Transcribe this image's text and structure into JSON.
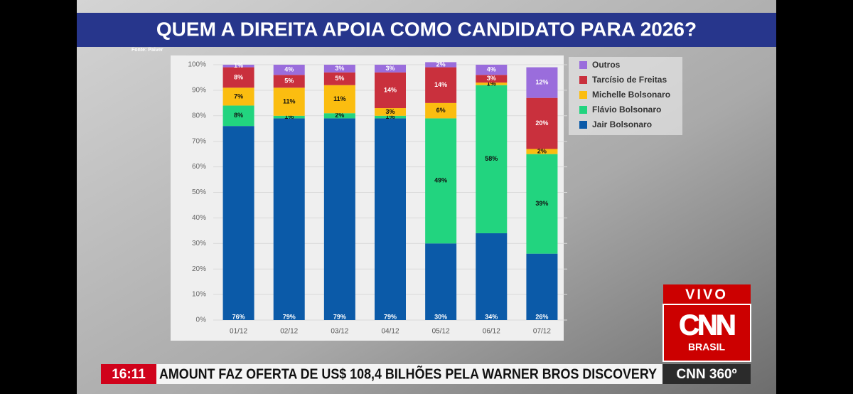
{
  "chart_data": {
    "type": "stacked-bar",
    "title": "QUEM A DIREITA APOIA COMO CANDIDATO PARA 2026?",
    "source": "Fonte: Paiver",
    "categories": [
      "01/12",
      "02/12",
      "03/12",
      "04/12",
      "05/12",
      "06/12",
      "07/12"
    ],
    "series": [
      {
        "name": "Jair Bolsonaro",
        "color": "#0b5aa8",
        "values": [
          76,
          79,
          79,
          79,
          30,
          34,
          26
        ],
        "value_labels": [
          "76%",
          "79%",
          "79%",
          "79%",
          "30%",
          "34%",
          "26%"
        ]
      },
      {
        "name": "Flávio Bolsonaro",
        "color": "#22d47f",
        "values": [
          8,
          1,
          2,
          1,
          49,
          58,
          39
        ],
        "value_labels": [
          "8%",
          "1%",
          "2%",
          "1%",
          "49%",
          "58%",
          "39%"
        ]
      },
      {
        "name": "Michelle Bolsonaro",
        "color": "#fbbd10",
        "values": [
          7,
          11,
          11,
          3,
          6,
          1,
          2
        ],
        "value_labels": [
          "7%",
          "11%",
          "11%",
          "3%",
          "6%",
          "1%",
          "2%"
        ]
      },
      {
        "name": "Tarcísio de Freitas",
        "color": "#c9303d",
        "values": [
          8,
          5,
          5,
          14,
          14,
          3,
          20
        ],
        "value_labels": [
          "8%",
          "5%",
          "5%",
          "14%",
          "14%",
          "3%",
          "20%"
        ]
      },
      {
        "name": "Outros",
        "color": "#9a6ddc",
        "values": [
          1,
          4,
          3,
          3,
          2,
          4,
          12
        ],
        "value_labels": [
          "1%",
          "4%",
          "3%",
          "3%",
          "2%",
          "4%",
          "12%"
        ]
      }
    ],
    "ylim": [
      0,
      100
    ],
    "yticks": [
      {
        "value": 0,
        "label": "0%"
      },
      {
        "value": 10,
        "label": "10%"
      },
      {
        "value": 20,
        "label": "20%"
      },
      {
        "value": 30,
        "label": "30%"
      },
      {
        "value": 40,
        "label": "40%"
      },
      {
        "value": 50,
        "label": "50%"
      },
      {
        "value": 60,
        "label": "60%"
      },
      {
        "value": 70,
        "label": "70%"
      },
      {
        "value": 80,
        "label": "80%"
      },
      {
        "value": 90,
        "label": "90%"
      },
      {
        "value": 100,
        "label": "100%"
      }
    ],
    "grid": true,
    "legend": "right"
  },
  "broadcast": {
    "live": "VIVO",
    "logo": "CNN",
    "logo_sub": "BRASIL",
    "time": "16:11",
    "headline": "AMOUNT FAZ OFERTA DE US$ 108,4 BILHÕES PELA WARNER BROS DISCOVERY",
    "program": "CNN 360º"
  }
}
